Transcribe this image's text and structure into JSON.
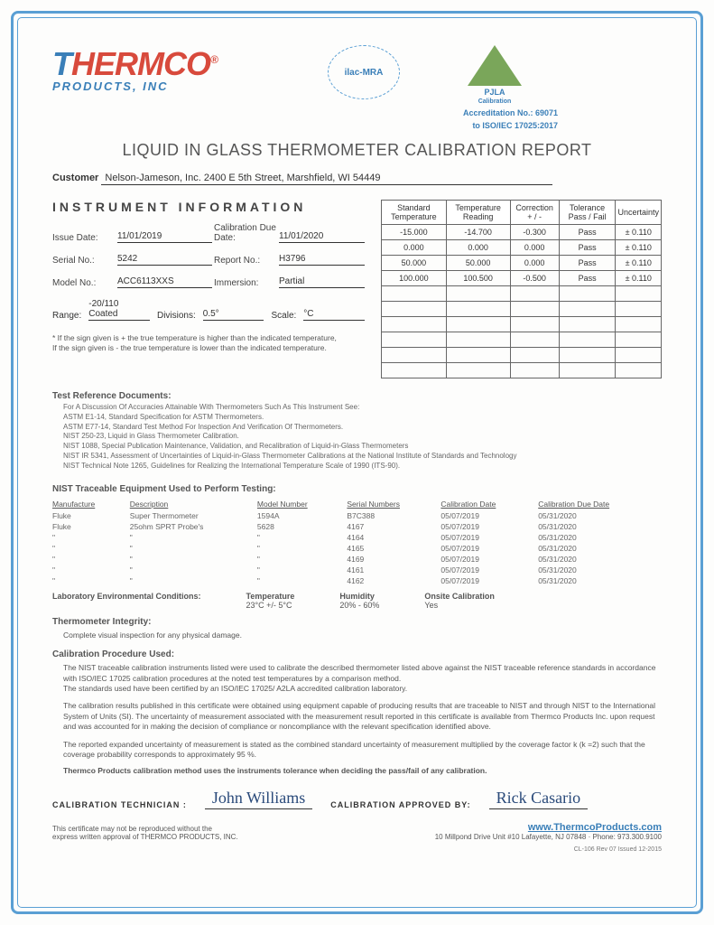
{
  "logo": {
    "brand_part1": "T",
    "brand_part2": "HERMCO",
    "tm": "®",
    "subtitle": "PRODUCTS, INC"
  },
  "ilac_text": "ilac-MRA",
  "pjla": {
    "label": "PJLA",
    "sub": "Calibration"
  },
  "accreditation": {
    "line1": "Accreditation No.: 69071",
    "line2": "to ISO/IEC 17025:2017"
  },
  "title": "LIQUID IN GLASS THERMOMETER CALIBRATION REPORT",
  "customer": {
    "label": "Customer",
    "value": "Nelson-Jameson, Inc.   2400 E 5th Street, Marshfield, WI  54449"
  },
  "instrument_header": "INSTRUMENT  INFORMATION",
  "instrument": {
    "issue_date_lbl": "Issue Date:",
    "issue_date": "11/01/2019",
    "cal_due_lbl": "Calibration Due Date:",
    "cal_due": "11/01/2020",
    "serial_lbl": "Serial No.:",
    "serial": "5242",
    "report_lbl": "Report No.:",
    "report": "H3796",
    "model_lbl": "Model No.:",
    "model": "ACC6113XXS",
    "immersion_lbl": "Immersion:",
    "immersion": "Partial",
    "range_lbl": "Range:",
    "range": "-20/110 Coated",
    "divisions_lbl": "Divisions:",
    "divisions": "0.5°",
    "scale_lbl": "Scale:",
    "scale": "°C"
  },
  "sign_note": "* If the sign given is + the true temperature is higher than the indicated temperature,\n  If the sign given is -  the true temperature is lower than the indicated temperature.",
  "data": {
    "headers": [
      "Standard Temperature",
      "Temperature Reading",
      "Correction + / -",
      "Tolerance Pass / Fail",
      "Uncertainty"
    ],
    "rows": [
      [
        "-15.000",
        "-14.700",
        "-0.300",
        "Pass",
        "±  0.110"
      ],
      [
        "0.000",
        "0.000",
        "0.000",
        "Pass",
        "±  0.110"
      ],
      [
        "50.000",
        "50.000",
        "0.000",
        "Pass",
        "±  0.110"
      ],
      [
        "100.000",
        "100.500",
        "-0.500",
        "Pass",
        "±  0.110"
      ],
      [
        "",
        "",
        "",
        "",
        ""
      ],
      [
        "",
        "",
        "",
        "",
        ""
      ],
      [
        "",
        "",
        "",
        "",
        ""
      ],
      [
        "",
        "",
        "",
        "",
        ""
      ],
      [
        "",
        "",
        "",
        "",
        ""
      ],
      [
        "",
        "",
        "",
        "",
        ""
      ]
    ]
  },
  "ref_docs": {
    "head": "Test Reference Documents:",
    "lines": [
      "For A Discussion Of Accuracies Attainable With Thermometers Such As This Instrument See:",
      "ASTM E1-14,  Standard Specification for ASTM Thermometers.",
      "ASTM E77-14,  Standard Test Method For Inspection And Verification Of Thermometers.",
      "NIST   250-23,  Liquid in Glass Thermometer Calibration.",
      "NIST   1088, Special Publication     Maintenance, Validation, and Recalibration of Liquid-in-Glass Thermometers",
      "NIST   IR 5341,  Assessment of Uncertainties of Liquid-in-Glass Thermometer Calibrations at the National Institute of Standards and Technology",
      "NIST   Technical Note 1265,  Guidelines for Realizing the International Temperature Scale of 1990 (ITS-90)."
    ]
  },
  "equip": {
    "head": "NIST Traceable Equipment Used to Perform Testing:",
    "columns": [
      "Manufacture",
      "Description",
      "Model Number",
      "Serial Numbers",
      "Calibration Date",
      "Calibration Due Date"
    ],
    "rows": [
      [
        "Fluke",
        "Super Thermometer",
        "1594A",
        "B7C388",
        "05/07/2019",
        "05/31/2020"
      ],
      [
        "Fluke",
        "25ohm SPRT Probe's",
        "5628",
        "4167",
        "05/07/2019",
        "05/31/2020"
      ],
      [
        "\"",
        "\"",
        "\"",
        "4164",
        "05/07/2019",
        "05/31/2020"
      ],
      [
        "\"",
        "\"",
        "\"",
        "4165",
        "05/07/2019",
        "05/31/2020"
      ],
      [
        "\"",
        "\"",
        "\"",
        "4169",
        "05/07/2019",
        "05/31/2020"
      ],
      [
        "\"",
        "\"",
        "\"",
        "4161",
        "05/07/2019",
        "05/31/2020"
      ],
      [
        "\"",
        "\"",
        "\"",
        "4162",
        "05/07/2019",
        "05/31/2020"
      ]
    ]
  },
  "env": {
    "head": "Laboratory Environmental Conditions:",
    "temp_h": "Temperature",
    "temp_v": "23°C +/- 5°C",
    "hum_h": "Humidity",
    "hum_v": "20% - 60%",
    "onsite_h": "Onsite Calibration",
    "onsite_v": "Yes"
  },
  "integrity": {
    "head": "Thermometer Integrity:",
    "body": "Complete visual inspection for any physical damage."
  },
  "procedure": {
    "head": "Calibration Procedure Used:",
    "p1": "The NIST traceable calibration instruments listed  were used to calibrate the described thermometer listed above against the NIST traceable reference standards in accordance with ISO/IEC 17025 calibration procedures at the noted test temperatures by a comparison method.\nThe standards used have been certified by an ISO/IEC 17025/ A2LA  accredited calibration laboratory.",
    "p2": "The calibration results published in this certificate were obtained using equipment capable of producing results that are traceable to NIST and through NIST to the International System of Units (SI). The uncertainty of measurement associated with the measurement result reported in this certificate is available from Thermco Products Inc. upon request and was accounted for in making the decision of compliance or noncompliance with the relevant specification identified above.",
    "p3": "The reported expanded uncertainty of measurement is stated as the combined standard uncertainty of measurement multiplied by the coverage factor k (k =2) such that the coverage probability corresponds to approximately 95 %.",
    "p4": "Thermco Products calibration method uses the instruments tolerance when deciding the pass/fail of any calibration."
  },
  "signatures": {
    "tech_lbl": "CALIBRATION TECHNICIAN :",
    "tech": "John Williams",
    "appr_lbl": "CALIBRATION APPROVED BY:",
    "appr": "Rick Casario"
  },
  "footer": {
    "disclaimer": "This certificate may not be reproduced without the\nexpress written approval of THERMCO PRODUCTS, INC.",
    "web": "www.ThermcoProducts.com",
    "addr": "10 Millpond Drive Unit #10  Lafayette, NJ  07848  ·  Phone: 973.300.9100",
    "docnum": "CL-106  Rev 07  Issued 12-2015"
  }
}
